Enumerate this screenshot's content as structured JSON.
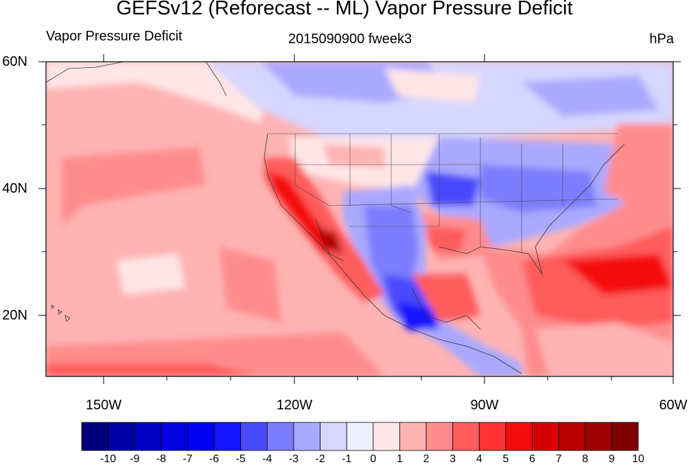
{
  "title": "GEFSv12 (Reforecast -- ML) Vapor Pressure Deficit",
  "subtitle_left": "Vapor Pressure Deficit",
  "subtitle_center": "2015090900 fweek3",
  "subtitle_right": "hPa",
  "lat_labels": [
    "60N",
    "40N",
    "20N"
  ],
  "lon_labels": [
    "150W",
    "120W",
    "90W",
    "60W"
  ],
  "colorbar": {
    "labels": [
      "-10",
      "-9",
      "-8",
      "-7",
      "-6",
      "-5",
      "-4",
      "-3",
      "-2",
      "-1",
      "0",
      "1",
      "2",
      "3",
      "4",
      "5",
      "6",
      "7",
      "8",
      "9",
      "10"
    ],
    "colors": [
      "#00007f",
      "#0000a6",
      "#0000c4",
      "#0000e0",
      "#0000f5",
      "#1414ff",
      "#4a4aff",
      "#7d7dff",
      "#a9a9ff",
      "#d6d6ff",
      "#eeeeff",
      "#ffe6e6",
      "#ffb3b3",
      "#ff8c8c",
      "#ff5c5c",
      "#ff3333",
      "#f50d0d",
      "#d90000",
      "#b80000",
      "#9c0000",
      "#7f0000"
    ]
  },
  "map_data": {
    "lon_range": [
      -160,
      -60
    ],
    "lat_range": [
      10,
      60
    ],
    "background_value": 2,
    "features": [
      "Pacific coast dry band",
      "Mexico moist band",
      "Eastern US moist",
      "Atlantic dry"
    ]
  }
}
